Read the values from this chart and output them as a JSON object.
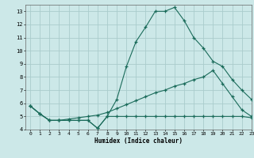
{
  "xlabel": "Humidex (Indice chaleur)",
  "bg_color": "#cce8e8",
  "grid_color": "#aacccc",
  "line_color": "#1a6b5a",
  "xlim": [
    -0.5,
    23
  ],
  "ylim": [
    4,
    13.5
  ],
  "yticks": [
    4,
    5,
    6,
    7,
    8,
    9,
    10,
    11,
    12,
    13
  ],
  "xticks": [
    0,
    1,
    2,
    3,
    4,
    5,
    6,
    7,
    8,
    9,
    10,
    11,
    12,
    13,
    14,
    15,
    16,
    17,
    18,
    19,
    20,
    21,
    22,
    23
  ],
  "series1_x": [
    0,
    1,
    2,
    3,
    4,
    5,
    6,
    7,
    8,
    9,
    10,
    11,
    12,
    13,
    14,
    15,
    16,
    17,
    18,
    19,
    20,
    21,
    22,
    23
  ],
  "series1_y": [
    5.8,
    5.2,
    4.7,
    4.7,
    4.7,
    4.7,
    4.7,
    4.1,
    5.0,
    5.0,
    5.0,
    5.0,
    5.0,
    5.0,
    5.0,
    5.0,
    5.0,
    5.0,
    5.0,
    5.0,
    5.0,
    5.0,
    5.0,
    4.9
  ],
  "series2_x": [
    0,
    1,
    2,
    3,
    4,
    5,
    6,
    7,
    8,
    9,
    10,
    11,
    12,
    13,
    14,
    15,
    16,
    17,
    18,
    19,
    20,
    21,
    22,
    23
  ],
  "series2_y": [
    5.8,
    5.2,
    4.7,
    4.7,
    4.8,
    4.9,
    5.0,
    5.1,
    5.3,
    5.6,
    5.9,
    6.2,
    6.5,
    6.8,
    7.0,
    7.3,
    7.5,
    7.8,
    8.0,
    8.5,
    7.5,
    6.5,
    5.5,
    5.0
  ],
  "series3_x": [
    0,
    1,
    2,
    3,
    4,
    5,
    6,
    7,
    8,
    9,
    10,
    11,
    12,
    13,
    14,
    15,
    16,
    17,
    18,
    19,
    20,
    21,
    22,
    23
  ],
  "series3_y": [
    5.8,
    5.2,
    4.7,
    4.7,
    4.7,
    4.7,
    4.7,
    4.1,
    5.0,
    6.3,
    8.8,
    10.7,
    11.8,
    13.0,
    13.0,
    13.3,
    12.3,
    11.0,
    10.2,
    9.2,
    8.8,
    7.8,
    7.0,
    6.3
  ]
}
